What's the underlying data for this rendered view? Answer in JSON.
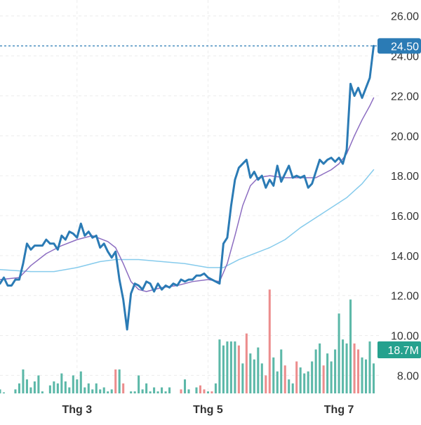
{
  "colors": {
    "price": "#2b7bb5",
    "ma_fast": "#8c6dc1",
    "ma_slow": "#86cbec",
    "vol_up": "#5cb8a8",
    "vol_down": "#ec8d8d",
    "grid": "#ececec",
    "last_price_bg": "#2b7bb5",
    "volume_badge_bg": "#25a18e",
    "axis_text": "#333333"
  },
  "chart_data": {
    "type": "line",
    "title": "",
    "grid": true,
    "y_axis_side": "right",
    "ylim": [
      7.1,
      26.8
    ],
    "y_ticks": [
      "8.00",
      "10.00",
      "12.00",
      "14.00",
      "16.00",
      "18.00",
      "20.00",
      "22.00",
      "24.00",
      "26.00"
    ],
    "x_labels": [
      {
        "label": "Thg 3",
        "t": 20
      },
      {
        "label": "Thg 5",
        "t": 54
      },
      {
        "label": "Thg 7",
        "t": 88
      }
    ],
    "t_range": [
      0,
      98
    ],
    "last_price_label": "24.50",
    "last_price": 24.5,
    "volume_label": "18.7M",
    "series": [
      {
        "key": "price",
        "points": [
          [
            0,
            12.6
          ],
          [
            1,
            12.9
          ],
          [
            2,
            12.5
          ],
          [
            3,
            12.5
          ],
          [
            4,
            12.8
          ],
          [
            5,
            12.8
          ],
          [
            6,
            13.6
          ],
          [
            7,
            14.6
          ],
          [
            8,
            14.3
          ],
          [
            9,
            14.5
          ],
          [
            10,
            14.5
          ],
          [
            11,
            14.5
          ],
          [
            12,
            14.8
          ],
          [
            13,
            14.6
          ],
          [
            14,
            14.6
          ],
          [
            15,
            14.3
          ],
          [
            16,
            15.0
          ],
          [
            17,
            14.8
          ],
          [
            18,
            15.2
          ],
          [
            19,
            15.1
          ],
          [
            20,
            14.9
          ],
          [
            21,
            15.6
          ],
          [
            22,
            15.0
          ],
          [
            23,
            15.2
          ],
          [
            24,
            14.9
          ],
          [
            25,
            15.0
          ],
          [
            26,
            14.4
          ],
          [
            27,
            14.6
          ],
          [
            28,
            14.2
          ],
          [
            29,
            13.9
          ],
          [
            30,
            14.2
          ],
          [
            31,
            12.8
          ],
          [
            32,
            11.8
          ],
          [
            33,
            10.3
          ],
          [
            34,
            12.1
          ],
          [
            35,
            12.6
          ],
          [
            36,
            12.5
          ],
          [
            37,
            12.3
          ],
          [
            38,
            12.7
          ],
          [
            39,
            12.6
          ],
          [
            40,
            12.2
          ],
          [
            41,
            12.6
          ],
          [
            42,
            12.3
          ],
          [
            43,
            12.5
          ],
          [
            44,
            12.4
          ],
          [
            45,
            12.6
          ],
          [
            46,
            12.5
          ],
          [
            47,
            12.8
          ],
          [
            48,
            12.7
          ],
          [
            49,
            12.8
          ],
          [
            50,
            12.8
          ],
          [
            51,
            13.0
          ],
          [
            52,
            13.0
          ],
          [
            53,
            13.1
          ],
          [
            54,
            12.9
          ],
          [
            55,
            12.8
          ],
          [
            56,
            12.7
          ],
          [
            57,
            12.6
          ],
          [
            58,
            14.6
          ],
          [
            59,
            14.9
          ],
          [
            60,
            16.5
          ],
          [
            61,
            17.8
          ],
          [
            62,
            18.4
          ],
          [
            63,
            18.6
          ],
          [
            64,
            18.8
          ],
          [
            65,
            17.9
          ],
          [
            66,
            18.2
          ],
          [
            67,
            17.8
          ],
          [
            68,
            18.0
          ],
          [
            69,
            17.4
          ],
          [
            70,
            17.8
          ],
          [
            71,
            17.5
          ],
          [
            72,
            18.5
          ],
          [
            73,
            17.7
          ],
          [
            74,
            18.1
          ],
          [
            75,
            18.5
          ],
          [
            76,
            17.9
          ],
          [
            77,
            18.0
          ],
          [
            78,
            17.9
          ],
          [
            79,
            18.0
          ],
          [
            80,
            17.4
          ],
          [
            81,
            17.6
          ],
          [
            82,
            18.2
          ],
          [
            83,
            18.8
          ],
          [
            84,
            18.6
          ],
          [
            85,
            18.8
          ],
          [
            86,
            18.9
          ],
          [
            87,
            18.7
          ],
          [
            88,
            18.9
          ],
          [
            89,
            18.6
          ],
          [
            90,
            19.3
          ],
          [
            91,
            22.6
          ],
          [
            92,
            22.0
          ],
          [
            93,
            22.4
          ],
          [
            94,
            21.9
          ],
          [
            95,
            22.4
          ],
          [
            96,
            22.9
          ],
          [
            97,
            24.5
          ]
        ]
      },
      {
        "key": "ma_fast",
        "points": [
          [
            0,
            12.8
          ],
          [
            5,
            12.9
          ],
          [
            8,
            13.5
          ],
          [
            12,
            14.1
          ],
          [
            16,
            14.5
          ],
          [
            20,
            14.8
          ],
          [
            24,
            15.0
          ],
          [
            28,
            14.7
          ],
          [
            30,
            14.4
          ],
          [
            32,
            13.6
          ],
          [
            34,
            12.7
          ],
          [
            36,
            12.3
          ],
          [
            38,
            12.2
          ],
          [
            42,
            12.4
          ],
          [
            46,
            12.5
          ],
          [
            50,
            12.7
          ],
          [
            54,
            12.8
          ],
          [
            57,
            12.7
          ],
          [
            59,
            13.6
          ],
          [
            61,
            15.0
          ],
          [
            63,
            16.5
          ],
          [
            65,
            17.5
          ],
          [
            67,
            17.9
          ],
          [
            70,
            18.0
          ],
          [
            74,
            17.9
          ],
          [
            78,
            17.9
          ],
          [
            82,
            17.9
          ],
          [
            86,
            18.3
          ],
          [
            88,
            18.6
          ],
          [
            90,
            19.1
          ],
          [
            92,
            20.0
          ],
          [
            94,
            20.8
          ],
          [
            96,
            21.5
          ],
          [
            97,
            21.9
          ]
        ]
      },
      {
        "key": "ma_slow",
        "points": [
          [
            0,
            13.3
          ],
          [
            8,
            13.2
          ],
          [
            14,
            13.2
          ],
          [
            20,
            13.4
          ],
          [
            26,
            13.7
          ],
          [
            30,
            13.8
          ],
          [
            36,
            13.8
          ],
          [
            42,
            13.7
          ],
          [
            48,
            13.6
          ],
          [
            54,
            13.4
          ],
          [
            58,
            13.4
          ],
          [
            62,
            13.8
          ],
          [
            66,
            14.1
          ],
          [
            70,
            14.4
          ],
          [
            74,
            14.8
          ],
          [
            78,
            15.4
          ],
          [
            82,
            15.9
          ],
          [
            86,
            16.4
          ],
          [
            90,
            16.9
          ],
          [
            94,
            17.6
          ],
          [
            97,
            18.3
          ]
        ]
      }
    ],
    "volume": [
      [
        7.3,
        1
      ],
      [
        7.15,
        1
      ],
      [
        7.1,
        1
      ],
      [
        7.0,
        1
      ],
      [
        7.3,
        1
      ],
      [
        7.6,
        1
      ],
      [
        8.3,
        1
      ],
      [
        7.8,
        1
      ],
      [
        7.4,
        1
      ],
      [
        7.7,
        1
      ],
      [
        8.0,
        1
      ],
      [
        7.2,
        1
      ],
      [
        7.1,
        1
      ],
      [
        7.5,
        1
      ],
      [
        7.7,
        1
      ],
      [
        7.6,
        1
      ],
      [
        8.1,
        1
      ],
      [
        7.7,
        1
      ],
      [
        7.4,
        1
      ],
      [
        8.0,
        1
      ],
      [
        7.8,
        1
      ],
      [
        8.2,
        1
      ],
      [
        7.4,
        1
      ],
      [
        7.6,
        1
      ],
      [
        7.3,
        1
      ],
      [
        7.6,
        1
      ],
      [
        7.3,
        1
      ],
      [
        7.4,
        1
      ],
      [
        7.2,
        1
      ],
      [
        7.3,
        1
      ],
      [
        8.3,
        0
      ],
      [
        8.3,
        1
      ],
      [
        7.6,
        0
      ],
      [
        7.0,
        1
      ],
      [
        7.2,
        1
      ],
      [
        7.2,
        1
      ],
      [
        8.0,
        1
      ],
      [
        7.3,
        1
      ],
      [
        7.6,
        1
      ],
      [
        7.2,
        1
      ],
      [
        7.4,
        1
      ],
      [
        7.2,
        1
      ],
      [
        7.4,
        1
      ],
      [
        7.2,
        1
      ],
      [
        7.4,
        1
      ],
      [
        7.0,
        0
      ],
      [
        7.1,
        1
      ],
      [
        7.3,
        0
      ],
      [
        7.8,
        1
      ],
      [
        7.3,
        1
      ],
      [
        7.1,
        0
      ],
      [
        7.4,
        1
      ],
      [
        7.5,
        0
      ],
      [
        7.3,
        0
      ],
      [
        7.2,
        1
      ],
      [
        7.2,
        0
      ],
      [
        7.6,
        1
      ],
      [
        9.8,
        1
      ],
      [
        9.5,
        1
      ],
      [
        9.7,
        1
      ],
      [
        9.7,
        1
      ],
      [
        9.7,
        1
      ],
      [
        9.5,
        0
      ],
      [
        8.6,
        1
      ],
      [
        10.1,
        0
      ],
      [
        9.1,
        1
      ],
      [
        8.8,
        1
      ],
      [
        9.4,
        1
      ],
      [
        8.6,
        1
      ],
      [
        8.0,
        0
      ],
      [
        12.3,
        0
      ],
      [
        8.9,
        1
      ],
      [
        8.2,
        1
      ],
      [
        9.3,
        1
      ],
      [
        8.5,
        0
      ],
      [
        7.8,
        1
      ],
      [
        7.6,
        1
      ],
      [
        8.7,
        0
      ],
      [
        8.4,
        1
      ],
      [
        8.1,
        1
      ],
      [
        8.2,
        1
      ],
      [
        8.7,
        1
      ],
      [
        9.3,
        1
      ],
      [
        9.6,
        1
      ],
      [
        8.5,
        0
      ],
      [
        9.1,
        1
      ],
      [
        8.7,
        1
      ],
      [
        9.3,
        1
      ],
      [
        11.1,
        1
      ],
      [
        9.8,
        1
      ],
      [
        9.6,
        1
      ],
      [
        11.8,
        1
      ],
      [
        9.6,
        0
      ],
      [
        9.3,
        0
      ],
      [
        8.9,
        1
      ],
      [
        8.8,
        1
      ],
      [
        9.7,
        1
      ],
      [
        8.6,
        1
      ]
    ]
  }
}
